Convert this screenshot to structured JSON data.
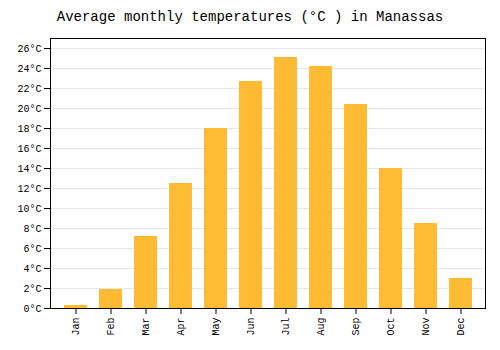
{
  "chart_data": {
    "type": "bar",
    "title": "Average monthly temperatures (°C ) in Manassas",
    "categories": [
      "Jan",
      "Feb",
      "Mar",
      "Apr",
      "May",
      "Jun",
      "Jul",
      "Aug",
      "Sep",
      "Oct",
      "Nov",
      "Dec"
    ],
    "values": [
      0.3,
      1.9,
      7.2,
      12.5,
      18.0,
      22.7,
      25.1,
      24.2,
      20.4,
      14.0,
      8.5,
      3.0
    ],
    "color": "#FFBB33",
    "ylim": [
      0,
      27
    ],
    "yticks": [
      {
        "value": 0,
        "label": "0°C"
      },
      {
        "value": 2,
        "label": "2°C"
      },
      {
        "value": 4,
        "label": "4°C"
      },
      {
        "value": 6,
        "label": "6°C"
      },
      {
        "value": 8,
        "label": "8°C"
      },
      {
        "value": 10,
        "label": "10°C"
      },
      {
        "value": 12,
        "label": "12°C"
      },
      {
        "value": 14,
        "label": "14°C"
      },
      {
        "value": 16,
        "label": "16°C"
      },
      {
        "value": 18,
        "label": "18°C"
      },
      {
        "value": 20,
        "label": "20°C"
      },
      {
        "value": 22,
        "label": "22°C"
      },
      {
        "value": 24,
        "label": "24°C"
      },
      {
        "value": 26,
        "label": "26°C"
      }
    ],
    "grid": true
  }
}
